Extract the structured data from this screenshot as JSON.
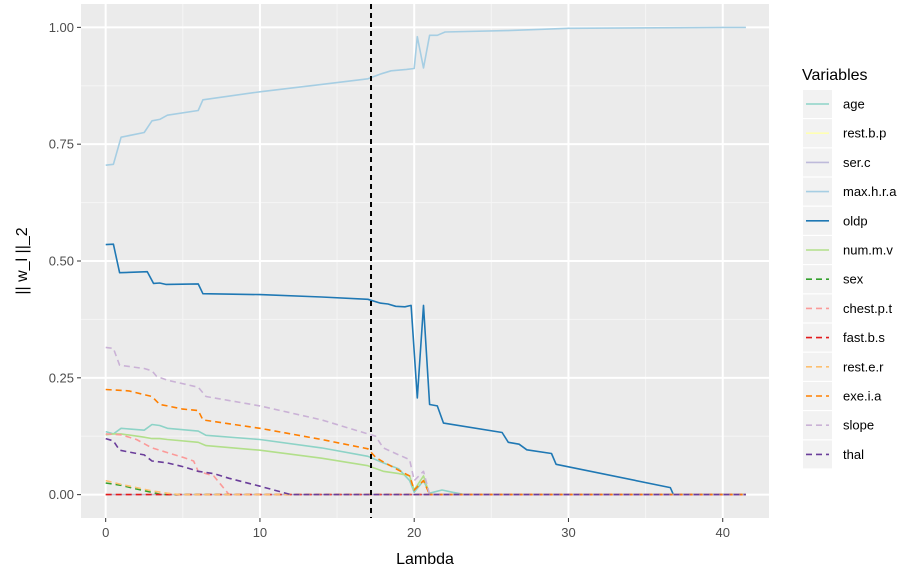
{
  "chart_data": {
    "type": "line",
    "title": "",
    "xlabel": "Lambda",
    "ylabel": "|| w_l ||_2",
    "xlim": [
      -1.6,
      43.0
    ],
    "ylim": [
      -0.05,
      1.05
    ],
    "xticks": [
      0,
      10,
      20,
      30,
      40
    ],
    "yticks": [
      0.0,
      0.25,
      0.5,
      0.75,
      1.0
    ],
    "xtick_labels": [
      "0",
      "10",
      "20",
      "30",
      "40"
    ],
    "ytick_labels": [
      "0.00",
      "0.25",
      "0.50",
      "0.75",
      "1.00"
    ],
    "grid": true,
    "vline": 17.2,
    "legend": {
      "title": "Variables",
      "position": "right"
    },
    "series": [
      {
        "name": "age",
        "color": "#8dd3c7",
        "dash": "solid",
        "points": [
          [
            0,
            0.135
          ],
          [
            0.5,
            0.13
          ],
          [
            1,
            0.142
          ],
          [
            2.5,
            0.138
          ],
          [
            3,
            0.15
          ],
          [
            3.5,
            0.148
          ],
          [
            4,
            0.142
          ],
          [
            6,
            0.136
          ],
          [
            6.5,
            0.127
          ],
          [
            10,
            0.118
          ],
          [
            14,
            0.1
          ],
          [
            17,
            0.082
          ],
          [
            18,
            0.068
          ],
          [
            19,
            0.055
          ],
          [
            19.7,
            0.03
          ],
          [
            20,
            0.005
          ],
          [
            20.6,
            0.03
          ],
          [
            21,
            0.003
          ],
          [
            21.8,
            0.01
          ],
          [
            22.5,
            0.005
          ],
          [
            23.3,
            0.0
          ],
          [
            41.5,
            0.0
          ]
        ]
      },
      {
        "name": "rest.b.p",
        "color": "#ffffb3",
        "dash": "solid",
        "points": [
          [
            0,
            0.0
          ],
          [
            41.5,
            0.0
          ]
        ]
      },
      {
        "name": "ser.c",
        "color": "#bebada",
        "dash": "solid",
        "points": [
          [
            0,
            0.0
          ],
          [
            41.5,
            0.0
          ]
        ]
      },
      {
        "name": "max.h.r.a",
        "color": "#a6cee3",
        "dash": "solid",
        "points": [
          [
            0,
            0.705
          ],
          [
            0.5,
            0.707
          ],
          [
            1,
            0.765
          ],
          [
            2.5,
            0.775
          ],
          [
            3,
            0.8
          ],
          [
            3.5,
            0.803
          ],
          [
            4,
            0.812
          ],
          [
            6,
            0.822
          ],
          [
            6.3,
            0.845
          ],
          [
            10,
            0.862
          ],
          [
            14,
            0.878
          ],
          [
            17,
            0.89
          ],
          [
            17.8,
            0.9
          ],
          [
            18.5,
            0.907
          ],
          [
            19.5,
            0.91
          ],
          [
            20,
            0.912
          ],
          [
            20.2,
            0.98
          ],
          [
            20.6,
            0.913
          ],
          [
            21,
            0.983
          ],
          [
            21.5,
            0.983
          ],
          [
            22,
            0.99
          ],
          [
            26,
            0.993
          ],
          [
            30,
            0.998
          ],
          [
            40,
            1.0
          ],
          [
            41.5,
            1.0
          ]
        ]
      },
      {
        "name": "oldp",
        "color": "#1f78b4",
        "dash": "solid",
        "points": [
          [
            0,
            0.535
          ],
          [
            0.5,
            0.536
          ],
          [
            0.9,
            0.475
          ],
          [
            2.7,
            0.477
          ],
          [
            3.1,
            0.452
          ],
          [
            3.5,
            0.453
          ],
          [
            3.9,
            0.45
          ],
          [
            6,
            0.451
          ],
          [
            6.3,
            0.43
          ],
          [
            10,
            0.428
          ],
          [
            14,
            0.423
          ],
          [
            17,
            0.418
          ],
          [
            17.8,
            0.41
          ],
          [
            18.3,
            0.408
          ],
          [
            18.8,
            0.403
          ],
          [
            19.4,
            0.402
          ],
          [
            19.8,
            0.405
          ],
          [
            20.2,
            0.207
          ],
          [
            20.6,
            0.405
          ],
          [
            21,
            0.193
          ],
          [
            21.5,
            0.19
          ],
          [
            21.9,
            0.153
          ],
          [
            25.7,
            0.133
          ],
          [
            26.1,
            0.112
          ],
          [
            26.8,
            0.108
          ],
          [
            27.3,
            0.096
          ],
          [
            28.9,
            0.088
          ],
          [
            29.2,
            0.065
          ],
          [
            36.6,
            0.015
          ],
          [
            36.8,
            0.0
          ],
          [
            41.5,
            0.0
          ]
        ]
      },
      {
        "name": "num.m.v",
        "color": "#b2df8a",
        "dash": "solid",
        "points": [
          [
            0,
            0.128
          ],
          [
            0.5,
            0.13
          ],
          [
            1,
            0.13
          ],
          [
            2.5,
            0.123
          ],
          [
            3,
            0.12
          ],
          [
            3.5,
            0.12
          ],
          [
            4,
            0.118
          ],
          [
            6,
            0.112
          ],
          [
            6.5,
            0.105
          ],
          [
            10,
            0.095
          ],
          [
            14,
            0.078
          ],
          [
            17,
            0.062
          ],
          [
            18,
            0.05
          ],
          [
            19,
            0.045
          ],
          [
            19.7,
            0.04
          ],
          [
            20,
            0.01
          ],
          [
            20.6,
            0.04
          ],
          [
            21,
            0.0
          ],
          [
            41.5,
            0.0
          ]
        ]
      },
      {
        "name": "sex",
        "color": "#33a02c",
        "dash": "dashed",
        "points": [
          [
            0,
            0.025
          ],
          [
            1,
            0.02
          ],
          [
            2,
            0.012
          ],
          [
            3,
            0.005
          ],
          [
            3.6,
            0.0
          ],
          [
            41.5,
            0.0
          ]
        ]
      },
      {
        "name": "chest.p.t",
        "color": "#fb9a99",
        "dash": "dashed",
        "points": [
          [
            0,
            0.13
          ],
          [
            1,
            0.128
          ],
          [
            2,
            0.118
          ],
          [
            3,
            0.1
          ],
          [
            4,
            0.09
          ],
          [
            5,
            0.08
          ],
          [
            5.7,
            0.072
          ],
          [
            6,
            0.05
          ],
          [
            7,
            0.04
          ],
          [
            8,
            0.0
          ],
          [
            41.5,
            0.0
          ]
        ]
      },
      {
        "name": "fast.b.s",
        "color": "#e31a1c",
        "dash": "dashed",
        "points": [
          [
            0,
            0.0
          ],
          [
            41.5,
            0.0
          ]
        ]
      },
      {
        "name": "rest.e.r",
        "color": "#fdbf6f",
        "dash": "dashed",
        "points": [
          [
            0,
            0.03
          ],
          [
            1,
            0.022
          ],
          [
            2,
            0.015
          ],
          [
            3,
            0.008
          ],
          [
            4,
            0.003
          ],
          [
            4.8,
            0.0
          ],
          [
            41.5,
            0.0
          ]
        ]
      },
      {
        "name": "exe.i.a",
        "color": "#ff7f00",
        "dash": "dashed",
        "points": [
          [
            0,
            0.225
          ],
          [
            1.5,
            0.222
          ],
          [
            3,
            0.21
          ],
          [
            3.5,
            0.193
          ],
          [
            4,
            0.19
          ],
          [
            5,
            0.183
          ],
          [
            6,
            0.18
          ],
          [
            6.3,
            0.16
          ],
          [
            10,
            0.142
          ],
          [
            14,
            0.118
          ],
          [
            17,
            0.098
          ],
          [
            17.5,
            0.08
          ],
          [
            18,
            0.07
          ],
          [
            19,
            0.052
          ],
          [
            19.7,
            0.04
          ],
          [
            20,
            0.01
          ],
          [
            20.6,
            0.03
          ],
          [
            21,
            0.0
          ],
          [
            41.5,
            0.0
          ]
        ]
      },
      {
        "name": "slope",
        "color": "#cab2d6",
        "dash": "dashed",
        "points": [
          [
            0,
            0.315
          ],
          [
            0.5,
            0.313
          ],
          [
            0.9,
            0.277
          ],
          [
            2,
            0.272
          ],
          [
            2.5,
            0.27
          ],
          [
            3,
            0.265
          ],
          [
            3.3,
            0.253
          ],
          [
            4,
            0.245
          ],
          [
            6,
            0.23
          ],
          [
            6.5,
            0.21
          ],
          [
            10,
            0.19
          ],
          [
            14,
            0.16
          ],
          [
            17,
            0.13
          ],
          [
            17.5,
            0.125
          ],
          [
            18,
            0.1
          ],
          [
            19,
            0.085
          ],
          [
            19.7,
            0.075
          ],
          [
            20,
            0.03
          ],
          [
            20.6,
            0.05
          ],
          [
            21,
            0.0
          ],
          [
            41.5,
            0.0
          ]
        ]
      },
      {
        "name": "thal",
        "color": "#6a3d9a",
        "dash": "dashed",
        "points": [
          [
            0,
            0.12
          ],
          [
            0.5,
            0.115
          ],
          [
            0.9,
            0.095
          ],
          [
            2.5,
            0.085
          ],
          [
            3,
            0.072
          ],
          [
            4,
            0.068
          ],
          [
            5,
            0.06
          ],
          [
            6,
            0.05
          ],
          [
            7,
            0.045
          ],
          [
            8,
            0.035
          ],
          [
            10,
            0.018
          ],
          [
            12,
            0.0
          ],
          [
            41.5,
            0.0
          ]
        ]
      }
    ]
  }
}
